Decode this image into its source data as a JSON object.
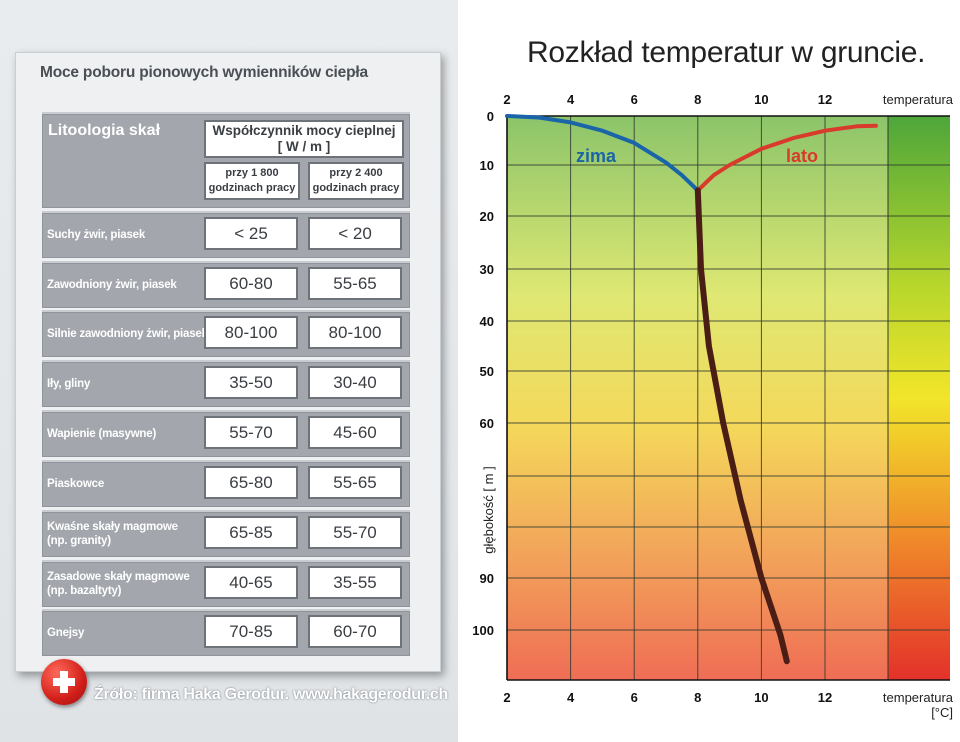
{
  "table": {
    "title": "Moce poboru pionowych wymienników ciepła",
    "header_rock": "Litoologia skał",
    "header_coef_line1": "Współczynnik mocy cieplnej",
    "header_coef_line2": "[ W / m ]",
    "sub1_line1": "przy 1 800",
    "sub1_line2": "godzinach pracy",
    "sub2_line1": "przy 2 400",
    "sub2_line2": "godzinach pracy",
    "rows": [
      {
        "label1": "Suchy żwir, piasek",
        "label2": "",
        "v1": "< 25",
        "v2": "< 20"
      },
      {
        "label1": "Zawodniony żwir, piasek",
        "label2": "",
        "v1": "60-80",
        "v2": "55-65"
      },
      {
        "label1": "Silnie zawodniony żwir, piasek",
        "label2": "",
        "v1": "80-100",
        "v2": "80-100"
      },
      {
        "label1": "Iły, gliny",
        "label2": "",
        "v1": "35-50",
        "v2": "30-40"
      },
      {
        "label1": "Wapienie (masywne)",
        "label2": "",
        "v1": "55-70",
        "v2": "45-60"
      },
      {
        "label1": "Piaskowce",
        "label2": "",
        "v1": "65-80",
        "v2": "55-65"
      },
      {
        "label1": "Kwaśne skały magmowe",
        "label2": "(np. granity)",
        "v1": "65-85",
        "v2": "55-70"
      },
      {
        "label1": "Zasadowe skały magmowe",
        "label2": "(np. bazaltyty)",
        "v1": "40-65",
        "v2": "35-55"
      },
      {
        "label1": "Gnejsy",
        "label2": "",
        "v1": "70-85",
        "v2": "60-70"
      }
    ]
  },
  "source": "Źróło: firma Haka Gerodur. www.hakagerodur.ch",
  "chart_data": {
    "type": "line",
    "title": "Rozkład temperatur w gruncie.",
    "xlabel_top": "temperatura",
    "xlabel_bottom": "temperatura",
    "xunit": "[°C]",
    "ylabel": "głębokość [ m ]",
    "xlim": [
      2,
      14
    ],
    "ylim": [
      0,
      110
    ],
    "xticks": [
      2,
      4,
      6,
      8,
      10,
      12
    ],
    "yticks": [
      0,
      10,
      20,
      30,
      40,
      50,
      60,
      90,
      100
    ],
    "grid": true,
    "series": [
      {
        "name": "zima",
        "color": "#1a64a8",
        "x": [
          2,
          3,
          4,
          5,
          6,
          7,
          7.5,
          8
        ],
        "y": [
          0,
          0.3,
          1.3,
          3,
          5.5,
          9.5,
          12,
          15
        ]
      },
      {
        "name": "lato",
        "color": "#d83a2c",
        "x": [
          8,
          8.5,
          9,
          10,
          11,
          12,
          13,
          13.6
        ],
        "y": [
          15,
          12,
          10,
          6.7,
          4.5,
          3,
          2.1,
          2
        ]
      },
      {
        "name": "",
        "color": "#4a1e14",
        "x": [
          8,
          8.1,
          8.35,
          8.8,
          9.35,
          10,
          10.6,
          10.8
        ],
        "y": [
          15,
          30,
          45,
          60,
          75,
          90,
          101,
          106
        ]
      }
    ]
  }
}
